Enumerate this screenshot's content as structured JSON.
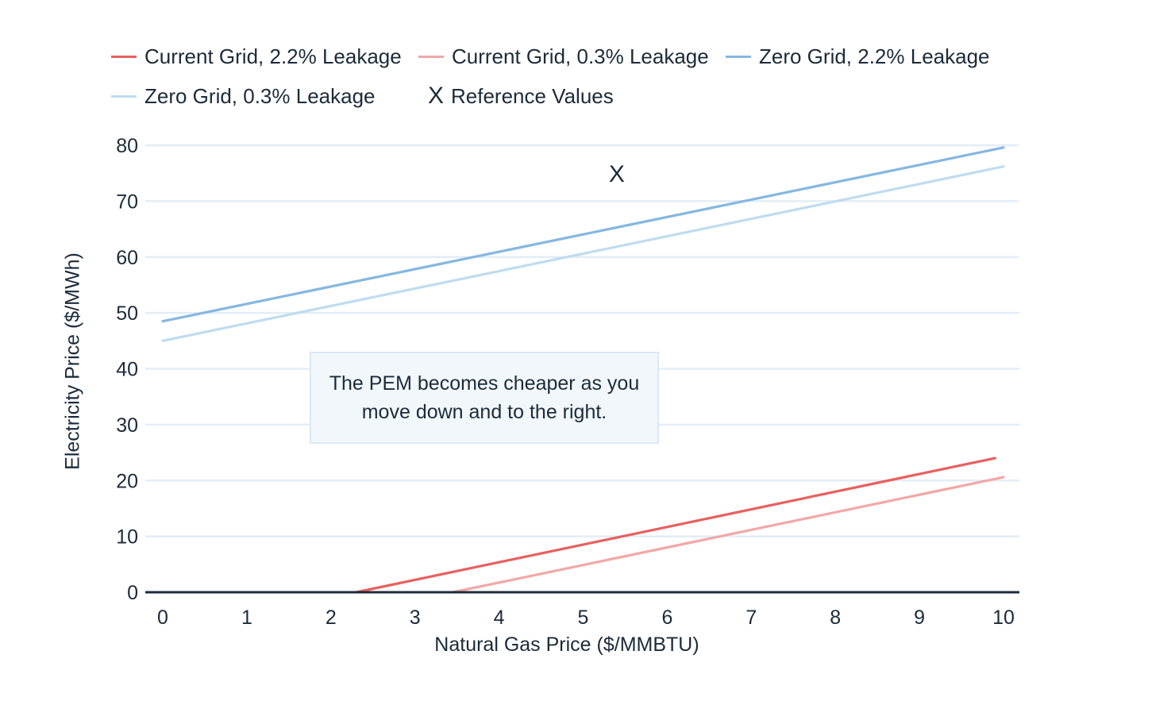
{
  "chart_data": {
    "type": "line",
    "xlabel": "Natural Gas Price ($/MMBTU)",
    "ylabel": "Electricity Price ($/MWh)",
    "xlim": [
      0,
      10
    ],
    "ylim": [
      0,
      80
    ],
    "x_ticks": [
      0,
      1,
      2,
      3,
      4,
      5,
      6,
      7,
      8,
      9,
      10
    ],
    "y_ticks": [
      0,
      10,
      20,
      30,
      40,
      50,
      60,
      70,
      80
    ],
    "grid": "horizontal",
    "legend_placement": "top-left",
    "series": [
      {
        "name": "Current Grid, 2.2% Leakage",
        "color": "#e8605f",
        "x": [
          2.3,
          9.9
        ],
        "y": [
          0,
          24
        ]
      },
      {
        "name": "Current Grid, 0.3% Leakage",
        "color": "#f2a8a6",
        "x": [
          3.45,
          10
        ],
        "y": [
          0,
          20.6
        ]
      },
      {
        "name": "Zero Grid, 2.2% Leakage",
        "color": "#86b7e0",
        "x": [
          0,
          10
        ],
        "y": [
          48.5,
          79.6
        ]
      },
      {
        "name": "Zero Grid, 0.3% Leakage",
        "color": "#bfdcf0",
        "x": [
          0,
          10
        ],
        "y": [
          45,
          76.2
        ]
      }
    ],
    "reference": {
      "name": "Reference Values",
      "symbol": "X",
      "x": 5.4,
      "y": 75
    },
    "annotation": "The PEM becomes cheaper as you move down and to the right."
  }
}
